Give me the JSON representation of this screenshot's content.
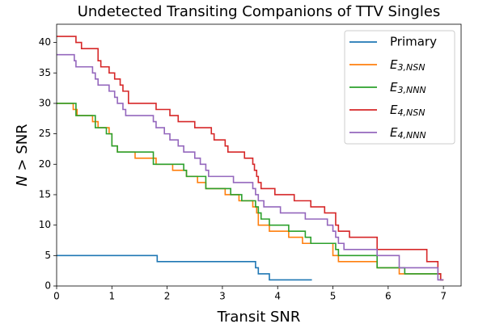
{
  "chart_data": {
    "type": "line",
    "step": "post",
    "title": "Undetected Transiting Companions of TTV Singles",
    "xlabel": "Transit SNR",
    "ylabel": "N > SNR",
    "xlim": [
      0,
      7.32
    ],
    "ylim": [
      0,
      43
    ],
    "xticks": [
      0,
      1,
      2,
      3,
      4,
      5,
      6,
      7
    ],
    "yticks": [
      0,
      5,
      10,
      15,
      20,
      25,
      30,
      35,
      40
    ],
    "legend": "upper right",
    "series": [
      {
        "name": "Primary",
        "color": "#1f77b4",
        "x": [
          0,
          1.82,
          3.6,
          3.65,
          3.85,
          4.62
        ],
        "values": [
          5,
          4,
          3,
          2,
          1,
          1
        ]
      },
      {
        "name": "E3,NSN",
        "color": "#ff7f0e",
        "x": [
          0,
          0.3,
          0.37,
          0.65,
          0.75,
          0.95,
          1.0,
          1.1,
          1.42,
          1.8,
          2.1,
          2.35,
          2.55,
          2.7,
          3.05,
          3.3,
          3.55,
          3.62,
          3.65,
          3.85,
          4.2,
          4.45,
          5.0,
          5.1,
          5.8,
          6.2,
          6.95,
          7.0
        ],
        "values": [
          30,
          29,
          28,
          27,
          26,
          25,
          23,
          22,
          21,
          20,
          19,
          18,
          17,
          16,
          15,
          14,
          13,
          12,
          10,
          9,
          8,
          7,
          5,
          4,
          3,
          2,
          1,
          1
        ]
      },
      {
        "name": "E3,NNN",
        "color": "#2ca02c",
        "x": [
          0,
          0.35,
          0.7,
          0.9,
          1.0,
          1.1,
          1.75,
          2.3,
          2.35,
          2.7,
          3.15,
          3.35,
          3.6,
          3.65,
          3.7,
          3.85,
          4.2,
          4.5,
          4.6,
          5.05,
          5.1,
          5.8,
          6.3,
          6.95,
          7.0
        ],
        "values": [
          30,
          28,
          26,
          25,
          23,
          22,
          20,
          19,
          18,
          16,
          15,
          14,
          13,
          12,
          11,
          10,
          9,
          8,
          7,
          6,
          5,
          3,
          2,
          1,
          1
        ]
      },
      {
        "name": "E4,NSN",
        "color": "#d62728",
        "x": [
          0,
          0.35,
          0.45,
          0.75,
          0.8,
          0.95,
          1.05,
          1.15,
          1.2,
          1.3,
          1.8,
          2.05,
          2.2,
          2.5,
          2.8,
          2.85,
          3.05,
          3.1,
          3.4,
          3.55,
          3.58,
          3.62,
          3.65,
          3.7,
          3.95,
          4.3,
          4.6,
          4.85,
          5.05,
          5.1,
          5.3,
          5.8,
          6.7,
          6.9,
          6.95,
          7.0
        ],
        "values": [
          41,
          40,
          39,
          37,
          36,
          35,
          34,
          33,
          32,
          30,
          29,
          28,
          27,
          26,
          25,
          24,
          23,
          22,
          21,
          20,
          19,
          18,
          17,
          16,
          15,
          14,
          13,
          12,
          10,
          9,
          8,
          6,
          4,
          2,
          1,
          1
        ]
      },
      {
        "name": "E4,NNN",
        "color": "#9467bd",
        "x": [
          0,
          0.32,
          0.35,
          0.65,
          0.7,
          0.75,
          0.95,
          1.05,
          1.1,
          1.2,
          1.25,
          1.75,
          1.8,
          1.95,
          2.05,
          2.2,
          2.3,
          2.5,
          2.6,
          2.7,
          2.75,
          3.2,
          3.55,
          3.6,
          3.65,
          3.75,
          4.05,
          4.5,
          4.9,
          5.0,
          5.05,
          5.1,
          5.2,
          5.8,
          6.2,
          6.9,
          7.0
        ],
        "values": [
          38,
          37,
          36,
          35,
          34,
          33,
          32,
          31,
          30,
          29,
          28,
          27,
          26,
          25,
          24,
          23,
          22,
          21,
          20,
          19,
          18,
          17,
          16,
          15,
          14,
          13,
          12,
          11,
          10,
          9,
          8,
          7,
          6,
          5,
          3,
          1,
          1
        ]
      }
    ]
  }
}
